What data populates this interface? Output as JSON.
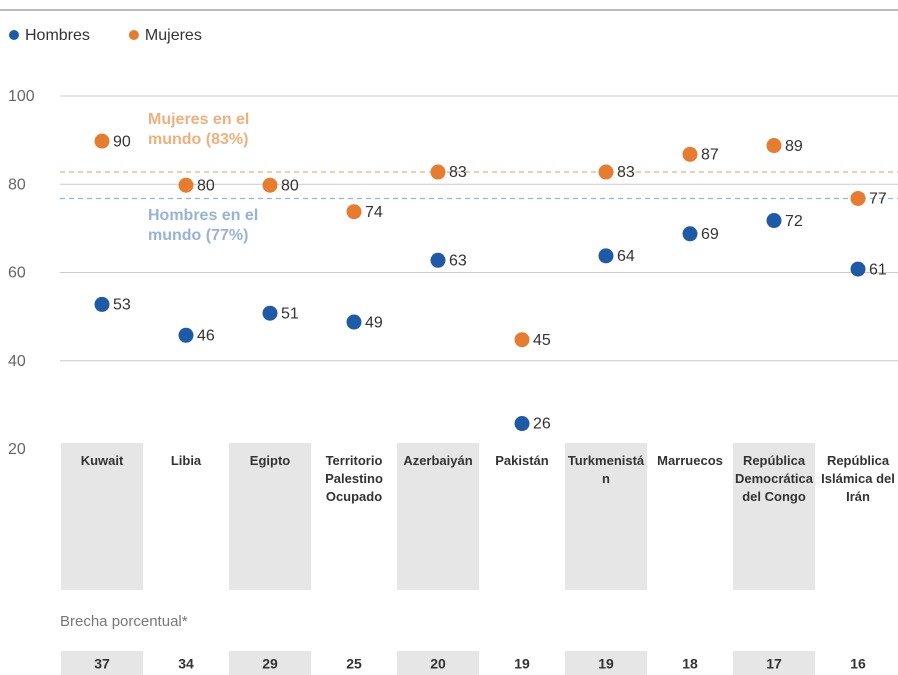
{
  "chart_data": {
    "type": "dot",
    "categories": [
      "Kuwait",
      "Libia",
      "Egipto",
      "Territorio Palestino Ocupado",
      "Azerbaiyán",
      "Pakistán",
      "Turkmenistán",
      "Marruecos",
      "República Democrática del Congo",
      "República Islámica del Irán"
    ],
    "series": [
      {
        "name": "Hombres",
        "color": "#1f5aa6",
        "values": [
          53,
          46,
          51,
          49,
          63,
          26,
          64,
          69,
          72,
          61
        ]
      },
      {
        "name": "Mujeres",
        "color": "#e57c2f",
        "values": [
          90,
          80,
          80,
          74,
          83,
          45,
          83,
          87,
          89,
          77
        ]
      }
    ],
    "reference_lines": [
      {
        "label": "Mujeres en el mundo (83%)",
        "value": 83,
        "color": "#f0b07c"
      },
      {
        "label": "Hombres en el mundo (77%)",
        "value": 77,
        "color": "#97b3d8"
      }
    ],
    "ylim": [
      20,
      100
    ],
    "yticks": [
      20,
      40,
      60,
      80,
      100
    ],
    "grid": true,
    "gap_title": "Brecha porcentual*",
    "gap_values": [
      37,
      34,
      29,
      25,
      20,
      19,
      19,
      18,
      17,
      16
    ]
  }
}
